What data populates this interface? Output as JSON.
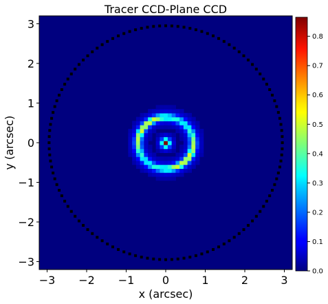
{
  "chart_data": {
    "type": "heatmap",
    "title": "Tracer CCD-Plane CCD",
    "xlabel": "x (arcsec)",
    "ylabel": "y (arcsec)",
    "xlim": [
      -3.2,
      3.2
    ],
    "ylim": [
      -3.2,
      3.2
    ],
    "x_ticks": [
      -3,
      -2,
      -1,
      0,
      1,
      2,
      3
    ],
    "y_ticks": [
      -3,
      -2,
      -1,
      0,
      1,
      2,
      3
    ],
    "x_tick_labels": [
      "−3",
      "−2",
      "−1",
      "0",
      "1",
      "2",
      "3"
    ],
    "y_tick_labels": [
      "−3",
      "−2",
      "−1",
      "0",
      "1",
      "2",
      "3"
    ],
    "colormap": "jet",
    "colorbar": {
      "range": [
        0.0,
        0.865
      ],
      "ticks": [
        0.0,
        0.1,
        0.2,
        0.3,
        0.4,
        0.5,
        0.6,
        0.7,
        0.8
      ],
      "tick_labels": [
        "0.0",
        "0.1",
        "0.2",
        "0.3",
        "0.4",
        "0.5",
        "0.6",
        "0.7",
        "0.8"
      ]
    },
    "features": {
      "ring": {
        "center": [
          0.0,
          0.0
        ],
        "semi_major_x": 0.7,
        "semi_minor_y": 0.65,
        "peak_value": 0.45
      },
      "central_source": {
        "center": [
          0.0,
          0.0
        ],
        "peak_value": 0.86
      },
      "mask_border": {
        "shape": "circle",
        "center": [
          0.0,
          0.0
        ],
        "radius": 2.95,
        "color": "#000000"
      }
    },
    "grid": false
  }
}
